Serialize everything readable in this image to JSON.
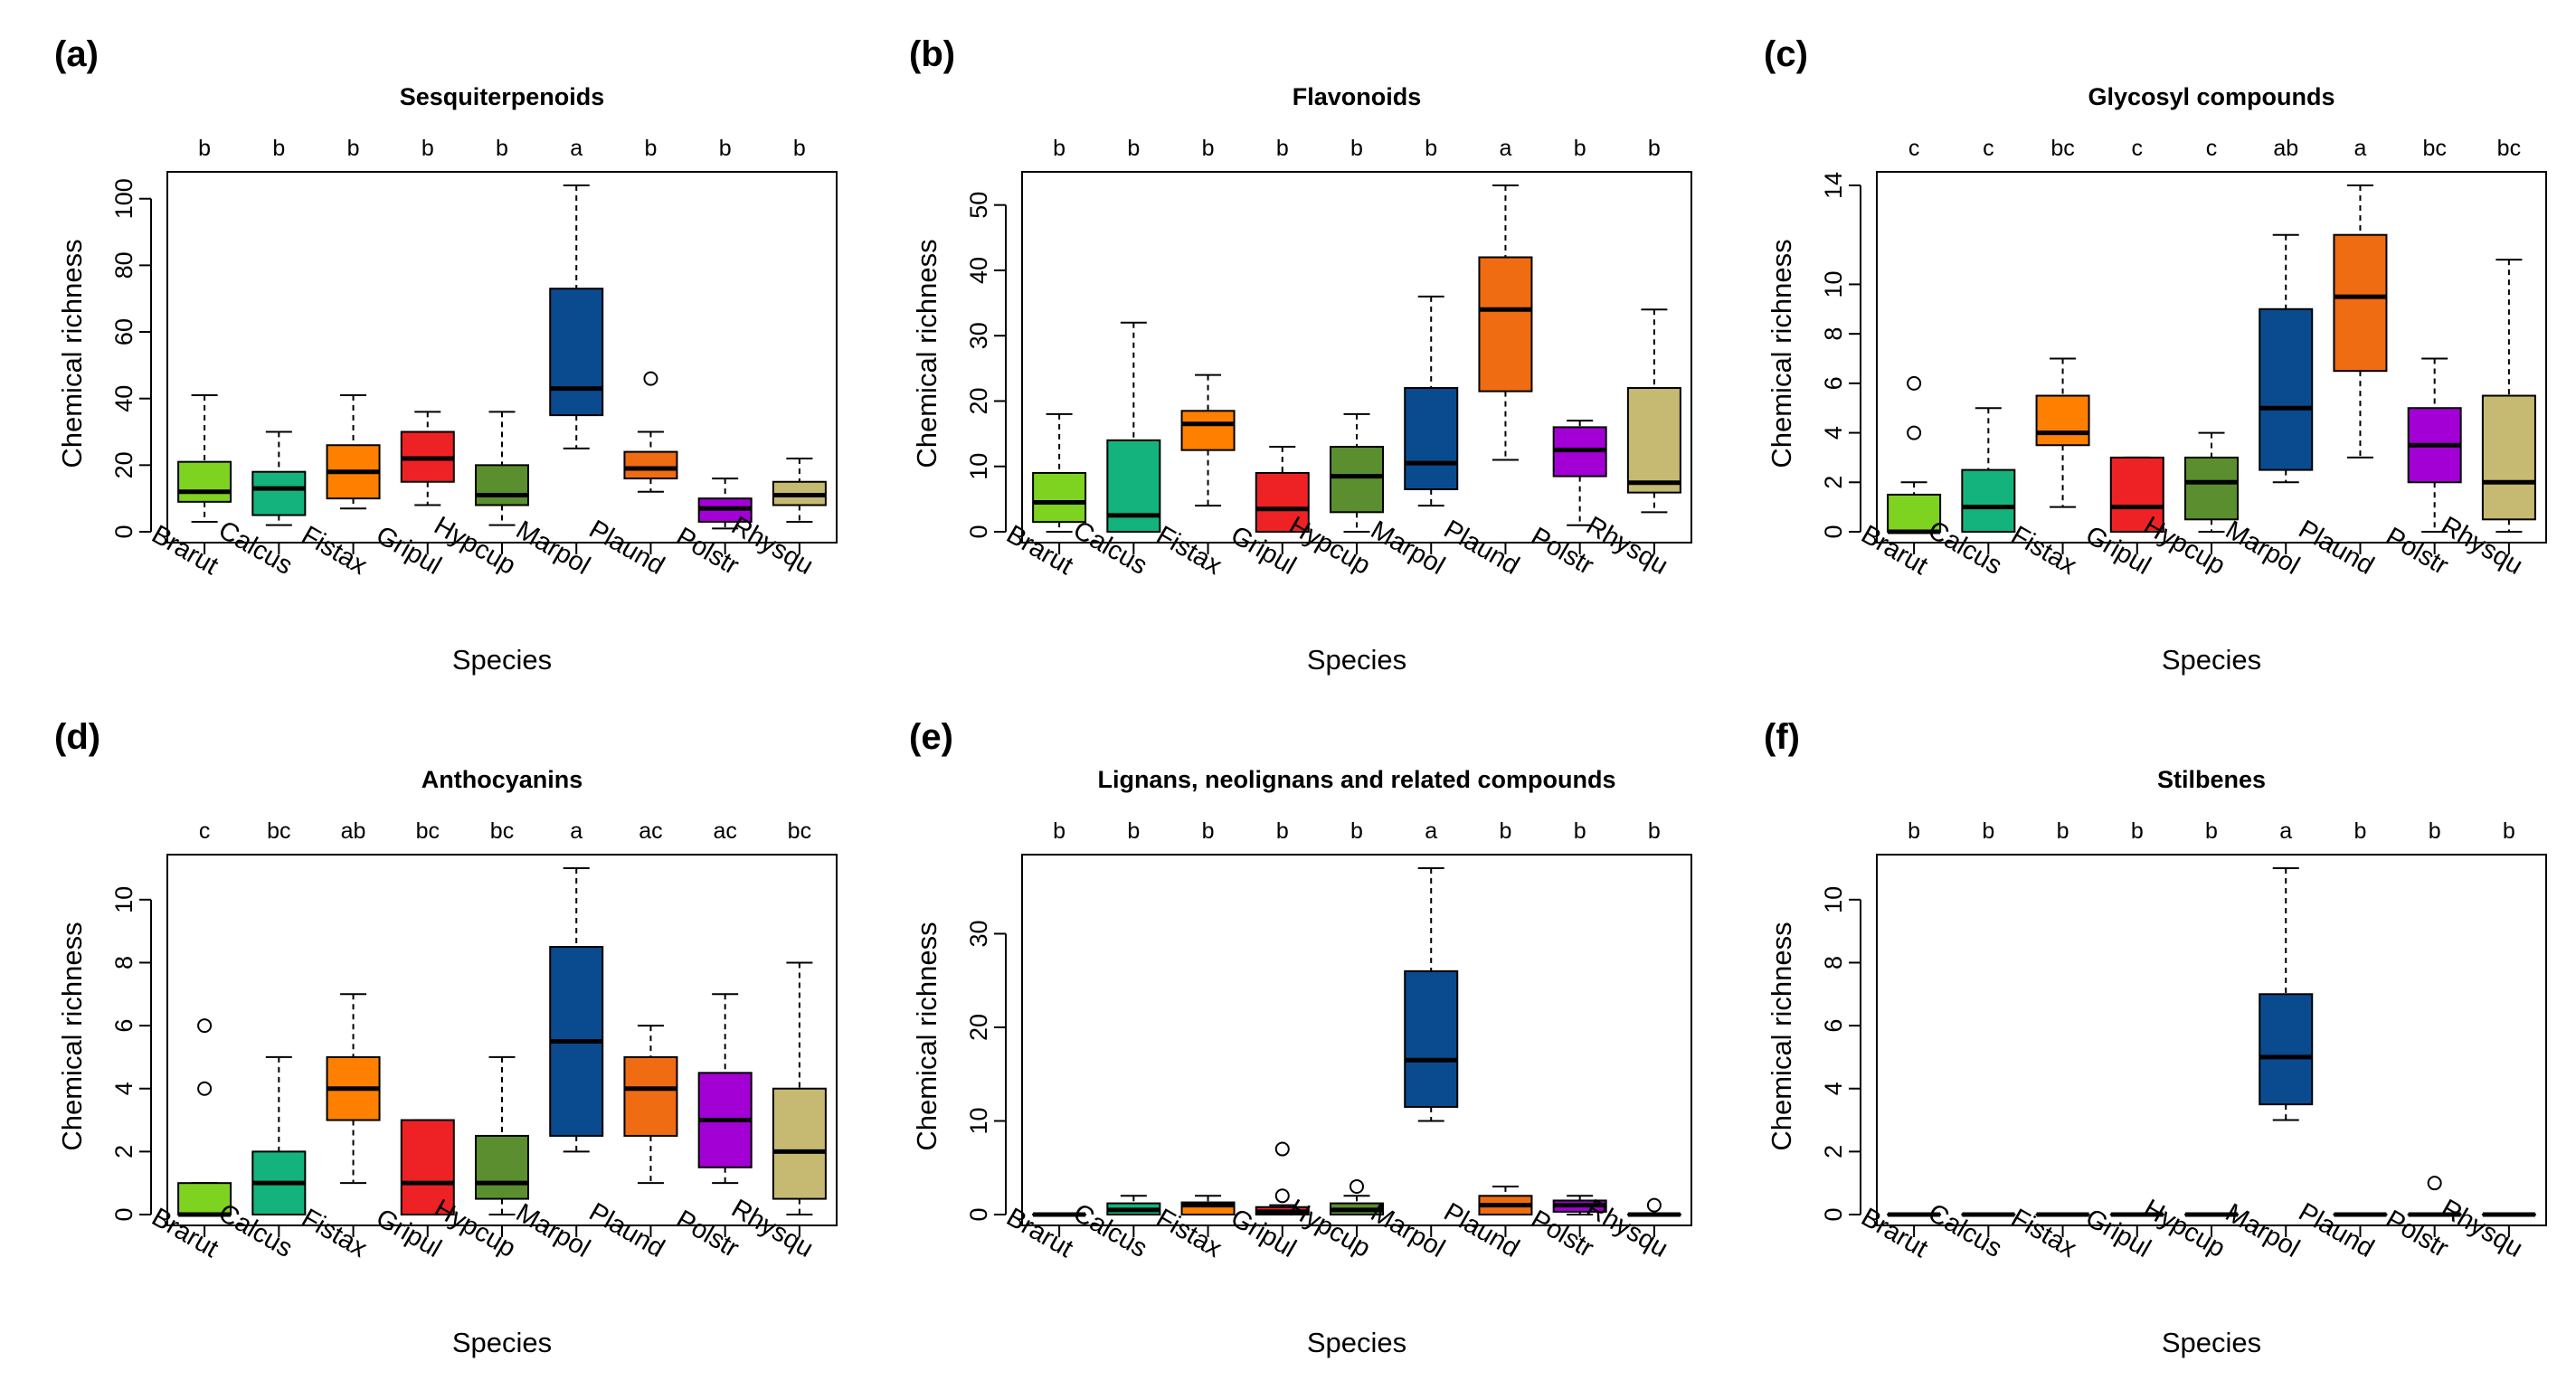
{
  "figure": {
    "xlabel": "Species",
    "ylabel": "Chemical richness",
    "species": [
      "Brarut",
      "Calcus",
      "Fistax",
      "Gripul",
      "Hypcup",
      "Marpol",
      "Plaund",
      "Polstr",
      "Rhysqu"
    ],
    "colors": [
      "#7ed321",
      "#14b37d",
      "#ff8000",
      "#ee2224",
      "#5b8e2e",
      "#0a4a8f",
      "#ef6c12",
      "#a300d6",
      "#c6ba72"
    ]
  },
  "chart_data": [
    {
      "type": "box",
      "label": "(a)",
      "title": "Sesquiterpenoids",
      "xlabel": "Species",
      "ylabel": "Chemical richness",
      "ylim": [
        0,
        104
      ],
      "yticks": [
        0,
        20,
        40,
        60,
        80,
        100
      ],
      "letters": [
        "b",
        "b",
        "b",
        "b",
        "b",
        "a",
        "b",
        "b",
        "b"
      ],
      "boxes": [
        {
          "min": 3,
          "q1": 9,
          "median": 12,
          "q3": 21,
          "max": 41,
          "outliers": []
        },
        {
          "min": 2,
          "q1": 5,
          "median": 13,
          "q3": 18,
          "max": 30,
          "outliers": []
        },
        {
          "min": 7,
          "q1": 10,
          "median": 18,
          "q3": 26,
          "max": 41,
          "outliers": []
        },
        {
          "min": 8,
          "q1": 15,
          "median": 22,
          "q3": 30,
          "max": 36,
          "outliers": []
        },
        {
          "min": 2,
          "q1": 8,
          "median": 11,
          "q3": 20,
          "max": 36,
          "outliers": []
        },
        {
          "min": 25,
          "q1": 35,
          "median": 43,
          "q3": 73,
          "max": 104,
          "outliers": []
        },
        {
          "min": 12,
          "q1": 16,
          "median": 19,
          "q3": 24,
          "max": 30,
          "outliers": [
            46
          ]
        },
        {
          "min": 1,
          "q1": 3,
          "median": 7,
          "q3": 10,
          "max": 16,
          "outliers": []
        },
        {
          "min": 3,
          "q1": 8,
          "median": 11,
          "q3": 15,
          "max": 22,
          "outliers": []
        }
      ]
    },
    {
      "type": "box",
      "label": "(b)",
      "title": "Flavonoids",
      "xlabel": "Species",
      "ylabel": "Chemical richness",
      "ylim": [
        0,
        53
      ],
      "yticks": [
        0,
        10,
        20,
        30,
        40,
        50
      ],
      "letters": [
        "b",
        "b",
        "b",
        "b",
        "b",
        "b",
        "a",
        "b",
        "b"
      ],
      "boxes": [
        {
          "min": 0,
          "q1": 1.5,
          "median": 4.5,
          "q3": 9,
          "max": 18,
          "outliers": []
        },
        {
          "min": 0,
          "q1": 0,
          "median": 2.5,
          "q3": 14,
          "max": 32,
          "outliers": []
        },
        {
          "min": 4,
          "q1": 12.5,
          "median": 16.5,
          "q3": 18.5,
          "max": 24,
          "outliers": []
        },
        {
          "min": 0,
          "q1": 0,
          "median": 3.5,
          "q3": 9,
          "max": 13,
          "outliers": []
        },
        {
          "min": 0,
          "q1": 3,
          "median": 8.5,
          "q3": 13,
          "max": 18,
          "outliers": []
        },
        {
          "min": 4,
          "q1": 6.5,
          "median": 10.5,
          "q3": 22,
          "max": 36,
          "outliers": []
        },
        {
          "min": 11,
          "q1": 21.5,
          "median": 34,
          "q3": 42,
          "max": 53,
          "outliers": []
        },
        {
          "min": 1,
          "q1": 8.5,
          "median": 12.5,
          "q3": 16,
          "max": 17,
          "outliers": []
        },
        {
          "min": 3,
          "q1": 6,
          "median": 7.5,
          "q3": 22,
          "max": 34,
          "outliers": []
        }
      ]
    },
    {
      "type": "box",
      "label": "(c)",
      "title": "Glycosyl compounds",
      "xlabel": "Species",
      "ylabel": "Chemical richness",
      "ylim": [
        0,
        14
      ],
      "yticks": [
        0,
        2,
        4,
        6,
        8,
        10,
        14
      ],
      "letters": [
        "c",
        "c",
        "bc",
        "c",
        "c",
        "ab",
        "a",
        "bc",
        "bc"
      ],
      "boxes": [
        {
          "min": 0,
          "q1": 0,
          "median": 0,
          "q3": 1.5,
          "max": 2,
          "outliers": [
            4,
            6
          ]
        },
        {
          "min": 0,
          "q1": 0,
          "median": 1,
          "q3": 2.5,
          "max": 5,
          "outliers": []
        },
        {
          "min": 1,
          "q1": 3.5,
          "median": 4,
          "q3": 5.5,
          "max": 7,
          "outliers": []
        },
        {
          "min": 0,
          "q1": 0,
          "median": 1,
          "q3": 3,
          "max": 3,
          "outliers": []
        },
        {
          "min": 0,
          "q1": 0.5,
          "median": 2,
          "q3": 3,
          "max": 4,
          "outliers": []
        },
        {
          "min": 2,
          "q1": 2.5,
          "median": 5,
          "q3": 9,
          "max": 12,
          "outliers": []
        },
        {
          "min": 3,
          "q1": 6.5,
          "median": 9.5,
          "q3": 12,
          "max": 14,
          "outliers": []
        },
        {
          "min": 0,
          "q1": 2,
          "median": 3.5,
          "q3": 5,
          "max": 7,
          "outliers": []
        },
        {
          "min": 0,
          "q1": 0.5,
          "median": 2,
          "q3": 5.5,
          "max": 11,
          "outliers": []
        }
      ]
    },
    {
      "type": "box",
      "label": "(d)",
      "title": "Anthocyanins",
      "xlabel": "Species",
      "ylabel": "Chemical richness",
      "ylim": [
        0,
        11
      ],
      "yticks": [
        0,
        2,
        4,
        6,
        8,
        10
      ],
      "letters": [
        "c",
        "bc",
        "ab",
        "bc",
        "bc",
        "a",
        "ac",
        "ac",
        "bc"
      ],
      "boxes": [
        {
          "min": 0,
          "q1": 0,
          "median": 0,
          "q3": 1,
          "max": 1,
          "outliers": [
            4,
            6
          ]
        },
        {
          "min": 0,
          "q1": 0,
          "median": 1,
          "q3": 2,
          "max": 5,
          "outliers": []
        },
        {
          "min": 1,
          "q1": 3,
          "median": 4,
          "q3": 5,
          "max": 7,
          "outliers": []
        },
        {
          "min": 0,
          "q1": 0,
          "median": 1,
          "q3": 3,
          "max": 3,
          "outliers": []
        },
        {
          "min": 0,
          "q1": 0.5,
          "median": 1,
          "q3": 2.5,
          "max": 5,
          "outliers": []
        },
        {
          "min": 2,
          "q1": 2.5,
          "median": 5.5,
          "q3": 8.5,
          "max": 11,
          "outliers": []
        },
        {
          "min": 1,
          "q1": 2.5,
          "median": 4,
          "q3": 5,
          "max": 6,
          "outliers": []
        },
        {
          "min": 1,
          "q1": 1.5,
          "median": 3,
          "q3": 4.5,
          "max": 7,
          "outliers": []
        },
        {
          "min": 0,
          "q1": 0.5,
          "median": 2,
          "q3": 4,
          "max": 8,
          "outliers": []
        }
      ]
    },
    {
      "type": "box",
      "label": "(e)",
      "title": "Lignans, neolignans and related compounds",
      "xlabel": "Species",
      "ylabel": "Chemical richness",
      "ylim": [
        0,
        37
      ],
      "yticks": [
        0,
        10,
        20,
        30
      ],
      "letters": [
        "b",
        "b",
        "b",
        "b",
        "b",
        "a",
        "b",
        "b",
        "b"
      ],
      "boxes": [
        {
          "min": 0,
          "q1": 0,
          "median": 0,
          "q3": 0,
          "max": 0,
          "outliers": []
        },
        {
          "min": 0,
          "q1": 0,
          "median": 0.5,
          "q3": 1.2,
          "max": 2,
          "outliers": []
        },
        {
          "min": 0,
          "q1": 0,
          "median": 1,
          "q3": 1.3,
          "max": 2,
          "outliers": []
        },
        {
          "min": 0,
          "q1": 0,
          "median": 0.3,
          "q3": 0.8,
          "max": 1,
          "outliers": [
            2,
            7
          ]
        },
        {
          "min": 0,
          "q1": 0,
          "median": 0.5,
          "q3": 1.2,
          "max": 2,
          "outliers": [
            3
          ]
        },
        {
          "min": 10,
          "q1": 11.5,
          "median": 16.5,
          "q3": 26,
          "max": 37,
          "outliers": []
        },
        {
          "min": 0,
          "q1": 0,
          "median": 1,
          "q3": 2,
          "max": 3,
          "outliers": []
        },
        {
          "min": 0,
          "q1": 0.3,
          "median": 1,
          "q3": 1.5,
          "max": 2,
          "outliers": []
        },
        {
          "min": 0,
          "q1": 0,
          "median": 0,
          "q3": 0,
          "max": 0,
          "outliers": [
            1
          ]
        }
      ]
    },
    {
      "type": "box",
      "label": "(f)",
      "title": "Stilbenes",
      "xlabel": "Species",
      "ylabel": "Chemical richness",
      "ylim": [
        0,
        11
      ],
      "yticks": [
        0,
        2,
        4,
        6,
        8,
        10
      ],
      "letters": [
        "b",
        "b",
        "b",
        "b",
        "b",
        "a",
        "b",
        "b",
        "b"
      ],
      "boxes": [
        {
          "min": 0,
          "q1": 0,
          "median": 0,
          "q3": 0,
          "max": 0,
          "outliers": []
        },
        {
          "min": 0,
          "q1": 0,
          "median": 0,
          "q3": 0,
          "max": 0,
          "outliers": []
        },
        {
          "min": 0,
          "q1": 0,
          "median": 0,
          "q3": 0,
          "max": 0,
          "outliers": []
        },
        {
          "min": 0,
          "q1": 0,
          "median": 0,
          "q3": 0,
          "max": 0,
          "outliers": []
        },
        {
          "min": 0,
          "q1": 0,
          "median": 0,
          "q3": 0,
          "max": 0,
          "outliers": []
        },
        {
          "min": 3,
          "q1": 3.5,
          "median": 5,
          "q3": 7,
          "max": 11,
          "outliers": []
        },
        {
          "min": 0,
          "q1": 0,
          "median": 0,
          "q3": 0,
          "max": 0,
          "outliers": []
        },
        {
          "min": 0,
          "q1": 0,
          "median": 0,
          "q3": 0,
          "max": 0,
          "outliers": [
            1
          ]
        },
        {
          "min": 0,
          "q1": 0,
          "median": 0,
          "q3": 0,
          "max": 0,
          "outliers": []
        }
      ]
    }
  ]
}
